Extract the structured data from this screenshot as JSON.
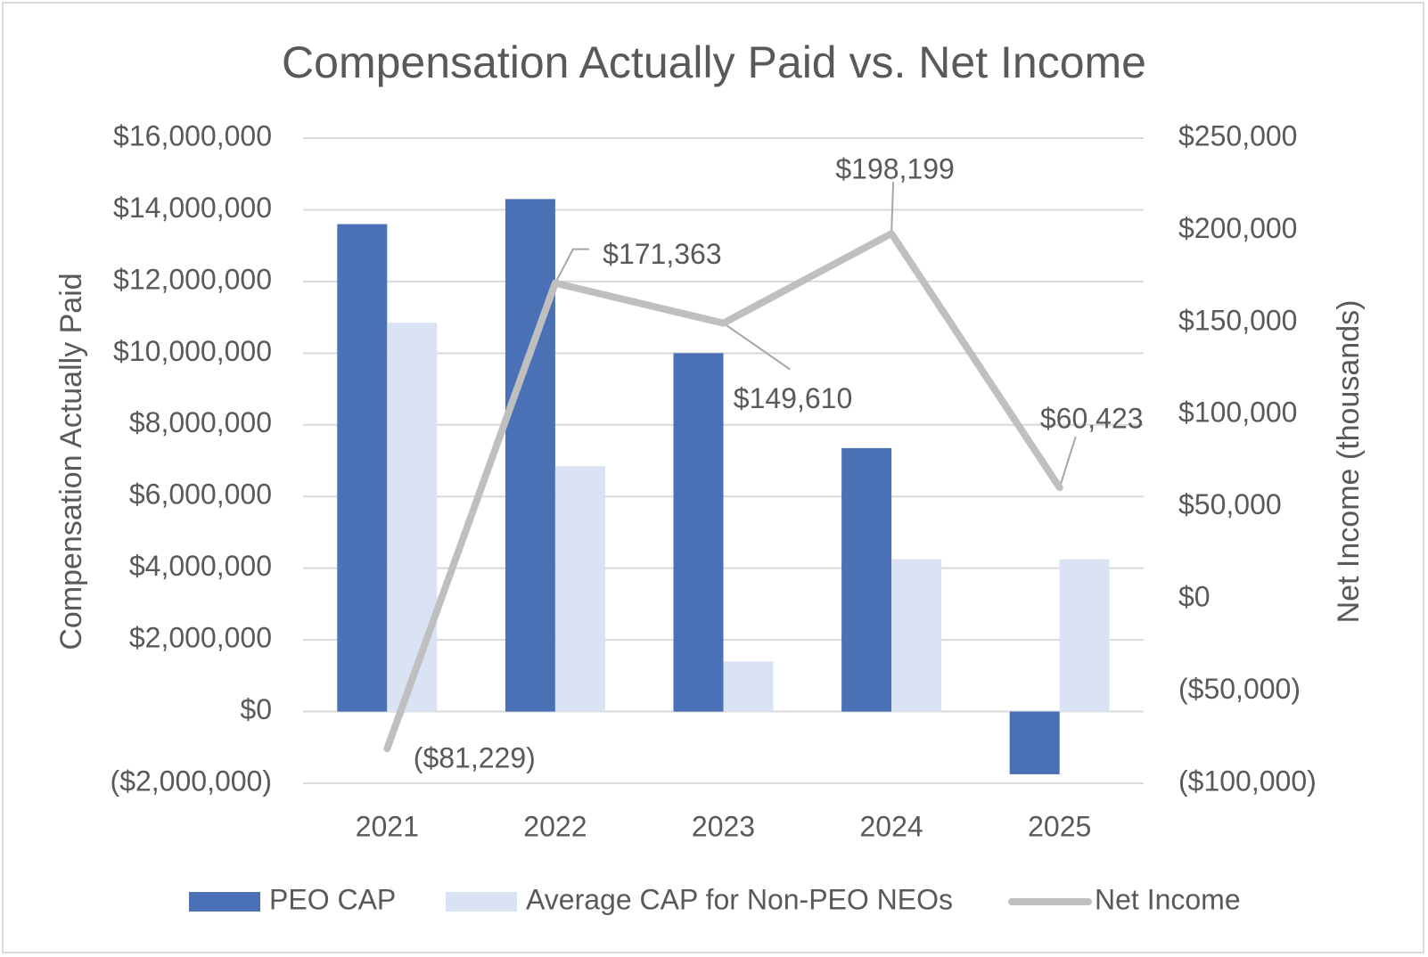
{
  "chart_data": {
    "type": "bar",
    "title": "Compensation Actually Paid vs. Net Income",
    "categories": [
      "2021",
      "2022",
      "2023",
      "2024",
      "2025"
    ],
    "series": [
      {
        "name": "PEO CAP",
        "type": "bar",
        "axis": "left",
        "color": "#4a70b5",
        "values": [
          13600000,
          14300000,
          10000000,
          7350000,
          -1750000
        ]
      },
      {
        "name": "Average CAP for Non-PEO NEOs",
        "type": "bar",
        "axis": "left",
        "color": "#dae3f3",
        "values": [
          10850000,
          6850000,
          1400000,
          4250000,
          4250000
        ]
      },
      {
        "name": "Net Income",
        "type": "line",
        "axis": "right",
        "color": "#bfbfbf",
        "values": [
          -81229,
          171363,
          149610,
          198199,
          60423
        ],
        "labels": [
          "($81,229)",
          "$171,363",
          "$149,610",
          "$198,199",
          "$60,423"
        ]
      }
    ],
    "ylabel": "Compensation Actually Paid",
    "y2label": "Net Income (thousands)",
    "ylim": [
      -2000000,
      16000000
    ],
    "y2lim": [
      -100000,
      250000
    ],
    "yticks": [
      {
        "value": 16000000,
        "label": "$16,000,000"
      },
      {
        "value": 14000000,
        "label": "$14,000,000"
      },
      {
        "value": 12000000,
        "label": "$12,000,000"
      },
      {
        "value": 10000000,
        "label": "$10,000,000"
      },
      {
        "value": 8000000,
        "label": "$8,000,000"
      },
      {
        "value": 6000000,
        "label": "$6,000,000"
      },
      {
        "value": 4000000,
        "label": "$4,000,000"
      },
      {
        "value": 2000000,
        "label": "$2,000,000"
      },
      {
        "value": 0,
        "label": "$0"
      },
      {
        "value": -2000000,
        "label": "($2,000,000)"
      }
    ],
    "y2ticks": [
      {
        "value": 250000,
        "label": "$250,000"
      },
      {
        "value": 200000,
        "label": "$200,000"
      },
      {
        "value": 150000,
        "label": "$150,000"
      },
      {
        "value": 100000,
        "label": "$100,000"
      },
      {
        "value": 50000,
        "label": "$50,000"
      },
      {
        "value": 0,
        "label": "$0"
      },
      {
        "value": -50000,
        "label": "($50,000)"
      },
      {
        "value": -100000,
        "label": "($100,000)"
      }
    ],
    "grid": true,
    "legend": "bottom"
  }
}
